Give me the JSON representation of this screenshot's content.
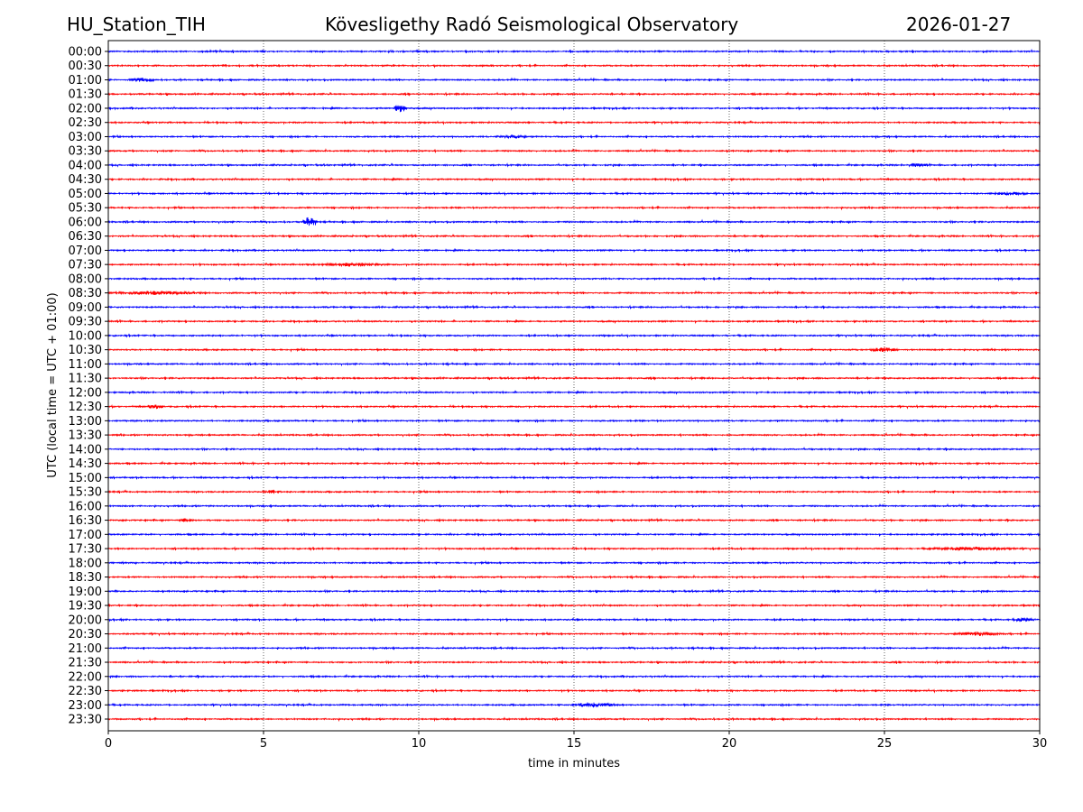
{
  "header": {
    "station": "HU_Station_TIH",
    "observatory": "Kövesligethy Radó Seismological Observatory",
    "date": "2026-01-27"
  },
  "chart_data": {
    "type": "line",
    "subtype": "helicorder",
    "xlabel": "time in minutes",
    "ylabel": "UTC (local time = UTC + 01:00)",
    "xlim": [
      0,
      30
    ],
    "xticks": [
      "0",
      "5",
      "10",
      "15",
      "20",
      "25",
      "30"
    ],
    "grid": "vertical dotted at 5-minute ticks",
    "row_labels": [
      "00:00",
      "00:30",
      "01:00",
      "01:30",
      "02:00",
      "02:30",
      "03:00",
      "03:30",
      "04:00",
      "04:30",
      "05:00",
      "05:30",
      "06:00",
      "06:30",
      "07:00",
      "07:30",
      "08:00",
      "08:30",
      "09:00",
      "09:30",
      "10:00",
      "10:30",
      "11:00",
      "11:30",
      "12:00",
      "12:30",
      "13:00",
      "13:30",
      "14:00",
      "14:30",
      "15:00",
      "15:30",
      "16:00",
      "16:30",
      "17:00",
      "17:30",
      "18:00",
      "18:30",
      "19:00",
      "19:30",
      "20:00",
      "20:30",
      "21:00",
      "21:30",
      "22:00",
      "22:30",
      "23:00",
      "23:30"
    ],
    "colors": [
      "#0000ff",
      "#ff0000"
    ],
    "events": [
      {
        "row": "01:00",
        "minute": 1.1,
        "duration": 0.7,
        "amplitude": 2
      },
      {
        "row": "02:00",
        "minute": 9.4,
        "duration": 0.2,
        "amplitude": 5
      },
      {
        "row": "03:00",
        "minute": 13.0,
        "duration": 0.8,
        "amplitude": 1.8
      },
      {
        "row": "04:00",
        "minute": 26.0,
        "duration": 0.6,
        "amplitude": 1.8
      },
      {
        "row": "05:00",
        "minute": 29.0,
        "duration": 1.0,
        "amplitude": 1.6
      },
      {
        "row": "06:00",
        "minute": 6.5,
        "duration": 0.25,
        "amplitude": 6
      },
      {
        "row": "07:30",
        "minute": 7.8,
        "duration": 2.5,
        "amplitude": 1.8
      },
      {
        "row": "08:30",
        "minute": 1.5,
        "duration": 3.0,
        "amplitude": 1.8
      },
      {
        "row": "10:30",
        "minute": 25.0,
        "duration": 0.8,
        "amplitude": 2.5
      },
      {
        "row": "12:30",
        "minute": 1.5,
        "duration": 0.3,
        "amplitude": 2.5
      },
      {
        "row": "15:30",
        "minute": 5.3,
        "duration": 0.5,
        "amplitude": 2
      },
      {
        "row": "16:30",
        "minute": 2.5,
        "duration": 0.3,
        "amplitude": 2
      },
      {
        "row": "17:30",
        "minute": 27.8,
        "duration": 3.0,
        "amplitude": 1.8
      },
      {
        "row": "20:00",
        "minute": 29.5,
        "duration": 0.6,
        "amplitude": 2
      },
      {
        "row": "20:30",
        "minute": 28.0,
        "duration": 1.5,
        "amplitude": 2
      },
      {
        "row": "23:00",
        "minute": 15.6,
        "duration": 1.5,
        "amplitude": 2.5
      }
    ]
  }
}
